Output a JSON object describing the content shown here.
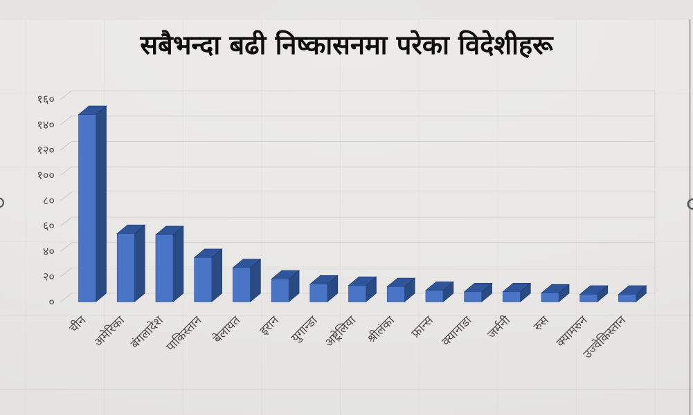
{
  "page": {
    "kind": "3d-bar-chart-slide",
    "language": "Nepali"
  },
  "chart_data": {
    "type": "bar",
    "style": "3d-column",
    "title": "सबैभन्दा बढी निष्कासनमा परेका विदेशीहरू",
    "categories": [
      "चीन",
      "अमेरिका",
      "बंगलादेश",
      "पाकिस्तान",
      "बेलायत",
      "इरान",
      "युगान्डा",
      "अष्ट्रेलिया",
      "श्रीलंका",
      "फ्रान्स",
      "क्यानाडा",
      "जर्मनी",
      "रुस",
      "क्यामरुन",
      "उज्वेकिस्तान"
    ],
    "values": [
      148,
      54,
      53,
      35,
      27,
      18,
      14,
      13,
      12,
      9,
      8,
      8,
      7,
      6,
      6
    ],
    "xlabel": "",
    "ylabel": "",
    "ylim": [
      0,
      160
    ],
    "ytick_step": 20,
    "ytick_labels": [
      "०",
      "२०",
      "४०",
      "६०",
      "८०",
      "१००",
      "१२०",
      "१४०",
      "१६०"
    ],
    "grid": true,
    "legend": "none",
    "colors": {
      "background": "#E9E8E6",
      "bar_front": "#4A74C5",
      "bar_top": "#30549A",
      "bar_side": "#2A4B82",
      "bar_edge": "#1E3B6D",
      "bar_front_edge": "#2E56A0",
      "grid": "#D7D6D3",
      "tick": "#CBCAC6",
      "text": "#4F4E4B",
      "title": "#0D0D0C"
    }
  }
}
